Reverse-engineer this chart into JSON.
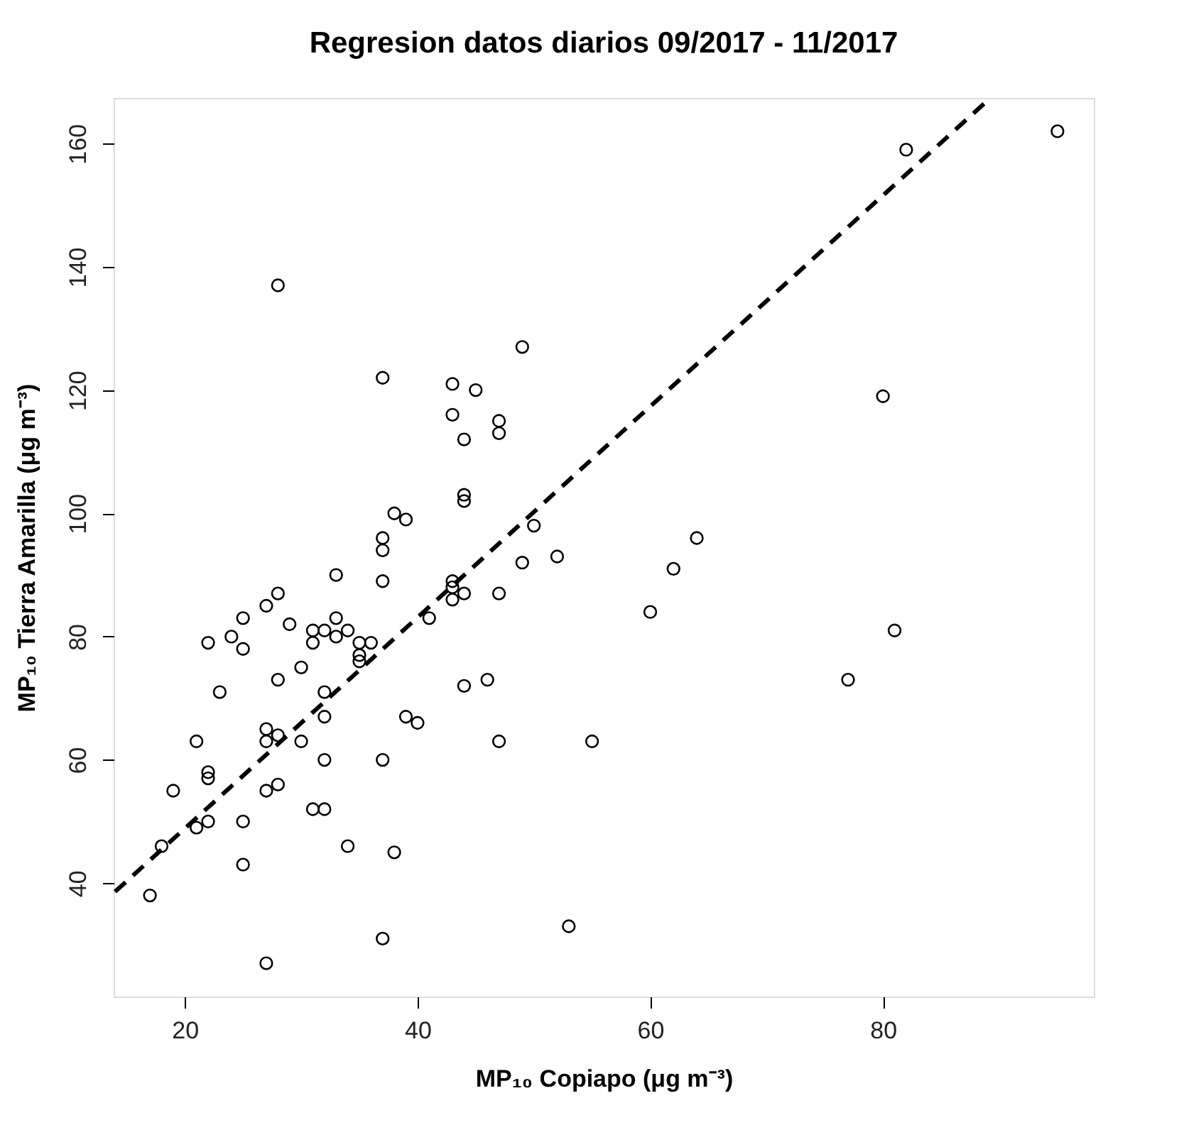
{
  "chart_data": {
    "type": "scatter",
    "title": "Regresion datos diarios 09/2017 - 11/2017",
    "xlabel": "MP₁₀ Copiapo (μg m⁻³)",
    "ylabel": "MP₁₀ Tierra Amarilla (μg m⁻³)",
    "xlim": [
      13.88,
      98.12
    ],
    "ylim": [
      21.6,
      167.4
    ],
    "xticks": [
      20,
      40,
      60,
      80
    ],
    "yticks": [
      40,
      60,
      80,
      100,
      120,
      140,
      160
    ],
    "grid": false,
    "series": [
      {
        "color": "#000000",
        "marker": "circle",
        "x": [
          28,
          49,
          37,
          43,
          45,
          43,
          47,
          47,
          44,
          44,
          44,
          38,
          39,
          50,
          37,
          37,
          33,
          37,
          52,
          49,
          43,
          43,
          43,
          44,
          47,
          28,
          27,
          25,
          25,
          22,
          24,
          29,
          31,
          31,
          32,
          33,
          33,
          34,
          35,
          36,
          35,
          35,
          41,
          30,
          28,
          23,
          32,
          32,
          27,
          28,
          27,
          30,
          21,
          22,
          22,
          32,
          37,
          19,
          27,
          28,
          31,
          32,
          22,
          21,
          25,
          18,
          34,
          38,
          25,
          17,
          37,
          27,
          39,
          40,
          44,
          46,
          47,
          55,
          53,
          95,
          82,
          80,
          64,
          62,
          60,
          81,
          77
        ],
        "values": [
          137,
          127,
          122,
          121,
          120,
          116,
          115,
          113,
          112,
          103,
          102,
          100,
          99,
          98,
          96,
          94,
          90,
          89,
          93,
          92,
          89,
          88,
          86,
          87,
          87,
          87,
          85,
          83,
          78,
          79,
          80,
          82,
          81,
          79,
          81,
          83,
          80,
          81,
          79,
          79,
          77,
          76,
          83,
          75,
          73,
          71,
          71,
          67,
          65,
          64,
          63,
          63,
          63,
          58,
          57,
          60,
          60,
          55,
          55,
          56,
          52,
          52,
          50,
          49,
          50,
          46,
          46,
          45,
          43,
          38,
          31,
          27,
          67,
          66,
          72,
          73,
          63,
          63,
          33,
          162,
          159,
          119,
          96,
          91,
          84,
          81,
          73
        ]
      },
      {
        "type": "line",
        "color": "#000000",
        "line_style": "dashed",
        "x": [
          14,
          89
        ],
        "values": [
          38.6,
          167
        ]
      }
    ]
  }
}
